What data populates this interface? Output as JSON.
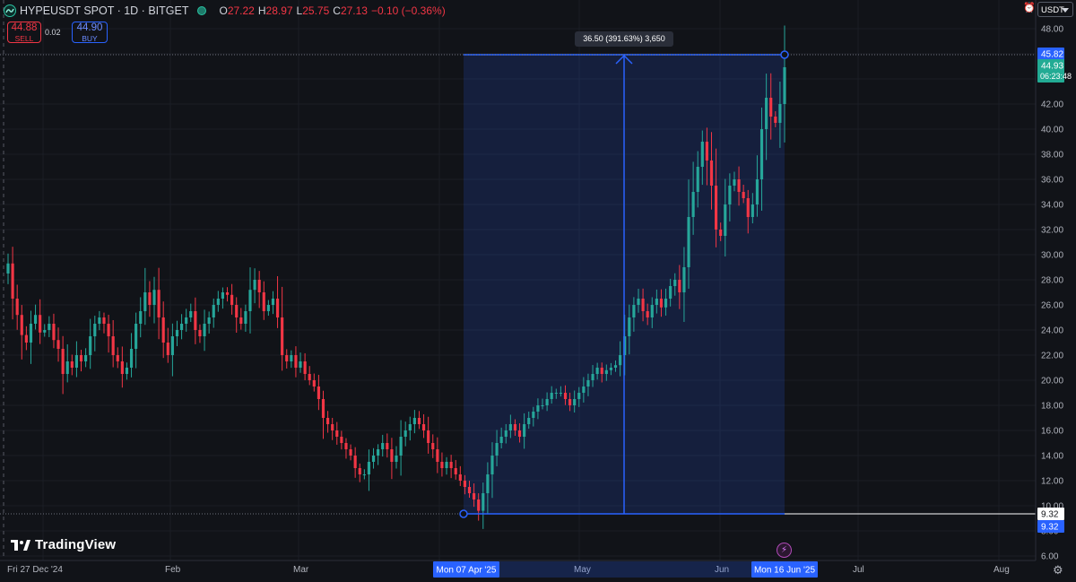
{
  "header": {
    "symbol": "HYPEUSDT SPOT · 1D · BITGET",
    "open_label": "O",
    "open": "27.22",
    "high_label": "H",
    "high": "28.97",
    "low_label": "L",
    "low": "25.75",
    "close_label": "C",
    "close": "27.13",
    "change": "−0.10 (−0.36%)"
  },
  "trade": {
    "sell_price": "44.88",
    "sell_label": "SELL",
    "spread": "0.02",
    "buy_price": "44.90",
    "buy_label": "BUY"
  },
  "currency": "USDT",
  "measure_label": "36.50 (391.63%) 3,650",
  "logo_text": "TradingView",
  "colors": {
    "up": "#26a69a",
    "down": "#f23645",
    "accent": "#2962ff",
    "bg": "#111318"
  },
  "chart_data": {
    "type": "candlestick",
    "y_ticks": [
      6,
      8,
      10,
      12,
      14,
      16,
      18,
      20,
      22,
      24,
      26,
      28,
      30,
      32,
      34,
      36,
      38,
      40,
      42,
      44,
      46,
      48
    ],
    "ylim": [
      5.5,
      49
    ],
    "price_badges": [
      {
        "value": "45.82",
        "color": "#2962ff",
        "sub": ""
      },
      {
        "value": "44.93",
        "color": "#22ab94",
        "sub": "06:23:48"
      },
      {
        "value": "9.32",
        "color": "#ffffff",
        "sub": ""
      },
      {
        "value": "9.32",
        "color": "#2962ff",
        "sub": ""
      }
    ],
    "x_labels": [
      "Fri 27 Dec '24",
      "Feb",
      "Mar",
      "Apr",
      "May",
      "Jun",
      "Jul",
      "Aug"
    ],
    "x_highlight": [
      "Mon 07 Apr '25",
      "Mon 16 Jun '25"
    ],
    "measurement": {
      "from_price": 9.32,
      "to_price": 45.82,
      "from_date": "Mon 07 Apr '25",
      "to_date": "Mon 16 Jun '25",
      "change": 36.5,
      "change_pct": 391.63,
      "ticks": 3650
    },
    "close_series": [
      29.3,
      26.5,
      25.2,
      23.6,
      23.0,
      24.5,
      25.2,
      23.8,
      24.0,
      24.5,
      23.2,
      22.5,
      20.5,
      21.5,
      21.0,
      22.0,
      21.5,
      22.0,
      23.5,
      24.5,
      25.0,
      24.5,
      23.5,
      22.0,
      21.5,
      20.5,
      21.0,
      22.5,
      24.5,
      25.5,
      27.0,
      26.0,
      27.2,
      25.0,
      23.0,
      22.0,
      23.5,
      24.0,
      24.5,
      25.0,
      25.5,
      24.0,
      23.5,
      24.5,
      25.0,
      26.0,
      26.5,
      27.0,
      26.8,
      26.0,
      25.0,
      24.5,
      25.5,
      27.2,
      28.0,
      27.0,
      25.5,
      26.0,
      26.5,
      25.0,
      22.0,
      21.5,
      22.0,
      21.0,
      21.5,
      20.5,
      20.0,
      19.5,
      18.5,
      17.0,
      16.5,
      16.0,
      15.5,
      15.0,
      14.5,
      14.0,
      13.0,
      12.5,
      12.5,
      13.5,
      14.0,
      14.5,
      15.0,
      14.5,
      13.5,
      14.0,
      15.5,
      16.0,
      16.5,
      17.0,
      16.5,
      16.0,
      15.0,
      14.5,
      13.5,
      13.0,
      13.5,
      13.0,
      12.5,
      12.0,
      11.5,
      11.0,
      10.5,
      9.6,
      11.0,
      12.5,
      14.0,
      15.0,
      15.5,
      16.0,
      16.5,
      16.0,
      15.5,
      16.5,
      17.0,
      17.5,
      18.0,
      18.0,
      18.5,
      19.0,
      19.0,
      19.0,
      18.5,
      18.0,
      18.5,
      19.0,
      19.5,
      20.0,
      20.5,
      21.0,
      20.5,
      20.8,
      21.0,
      21.2,
      22.0,
      23.5,
      25.0,
      26.0,
      26.5,
      25.5,
      25.0,
      26.0,
      26.5,
      25.8,
      26.5,
      27.5,
      28.0,
      27.0,
      29.0,
      33.0,
      35.0,
      37.0,
      39.0,
      37.5,
      35.5,
      32.0,
      31.5,
      34.0,
      35.5,
      36.0,
      35.0,
      34.5,
      33.0,
      34.0,
      36.0,
      40.0,
      42.5,
      41.0,
      40.5,
      42.0,
      44.93
    ]
  }
}
